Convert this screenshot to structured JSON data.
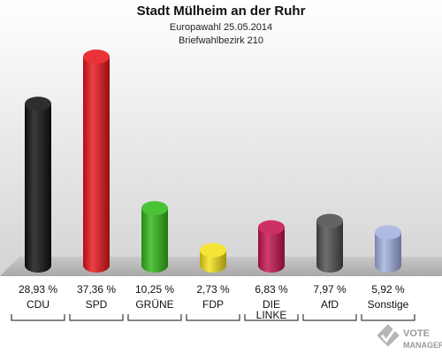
{
  "chart_data": {
    "type": "bar",
    "title": "Stadt Mülheim an der Ruhr",
    "subtitle_1": "Europawahl 25.05.2014",
    "subtitle_2": "Briefwahlbezirk 210",
    "categories": [
      "CDU",
      "SPD",
      "GRÜNE",
      "FDP",
      "DIE LINKE",
      "AfD",
      "Sonstige"
    ],
    "values": [
      28.93,
      37.36,
      10.25,
      2.73,
      6.83,
      7.97,
      5.92
    ],
    "value_labels": [
      "28,93 %",
      "37,36 %",
      "10,25 %",
      "2,73 %",
      "6,83 %",
      "7,97 %",
      "5,92 %"
    ],
    "colors": [
      "#111111",
      "#e8161b",
      "#32b81a",
      "#f4e21a",
      "#c6144d",
      "#4e4e4e",
      "#a3b1e0"
    ],
    "ylim": [
      0,
      40
    ],
    "grid": false,
    "legend": "none"
  },
  "watermark": {
    "line1": "VOTE",
    "line2": "MANAGER",
    "icon": "checkmark-ballot-icon"
  }
}
